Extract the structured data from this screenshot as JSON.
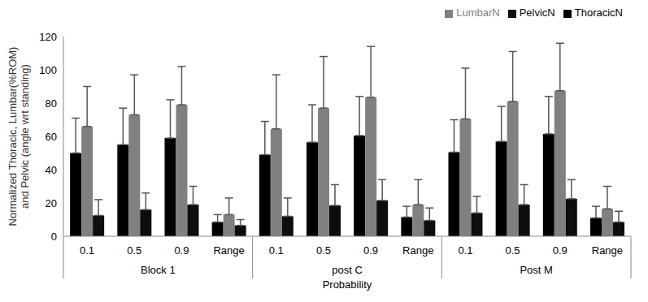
{
  "chart_data": {
    "type": "bar",
    "y_label": "Normalized Thoracic, Lumbar(%ROM) and Pelvic (angle wrt standing)",
    "x_label": "Probability",
    "categories": [
      "0.1",
      "0.5",
      "0.9",
      "Range",
      "0.1",
      "0.5",
      "0.9",
      "Range",
      "0.1",
      "0.5",
      "0.9",
      "Range"
    ],
    "groups": [
      "Block 1",
      "post C",
      "Post M"
    ],
    "series": [
      {
        "name": "ThoracicN",
        "color": "#000000",
        "values": [
          50,
          55,
          59,
          8.5,
          49,
          56.5,
          60.5,
          11.5,
          50.5,
          57,
          61.5,
          11
        ],
        "errors": [
          21,
          22,
          23,
          4.5,
          20,
          22.5,
          23.5,
          6.5,
          19.5,
          21,
          22.5,
          7
        ]
      },
      {
        "name": "LumbarN",
        "color": "#808080",
        "values": [
          66,
          73,
          79,
          13,
          64.5,
          77,
          83.5,
          19,
          70.5,
          81,
          87.5,
          16.5
        ],
        "errors": [
          24,
          24,
          23,
          10,
          32.5,
          31,
          30.5,
          15,
          30.5,
          30,
          28.5,
          13.5
        ]
      },
      {
        "name": "PelvicN",
        "color": "#0d0d0d",
        "values": [
          12.5,
          16,
          19,
          6.5,
          12,
          18.5,
          21.5,
          9.5,
          14,
          19,
          22.5,
          8.5
        ],
        "errors": [
          9.5,
          10,
          11,
          3.5,
          11,
          12.5,
          12.5,
          7.5,
          10,
          12,
          11.5,
          6.5
        ]
      }
    ],
    "ylim": [
      0,
      120
    ],
    "yticks": [
      0,
      20,
      40,
      60,
      80,
      100,
      120
    ],
    "grid": false,
    "legend": "upper right"
  }
}
